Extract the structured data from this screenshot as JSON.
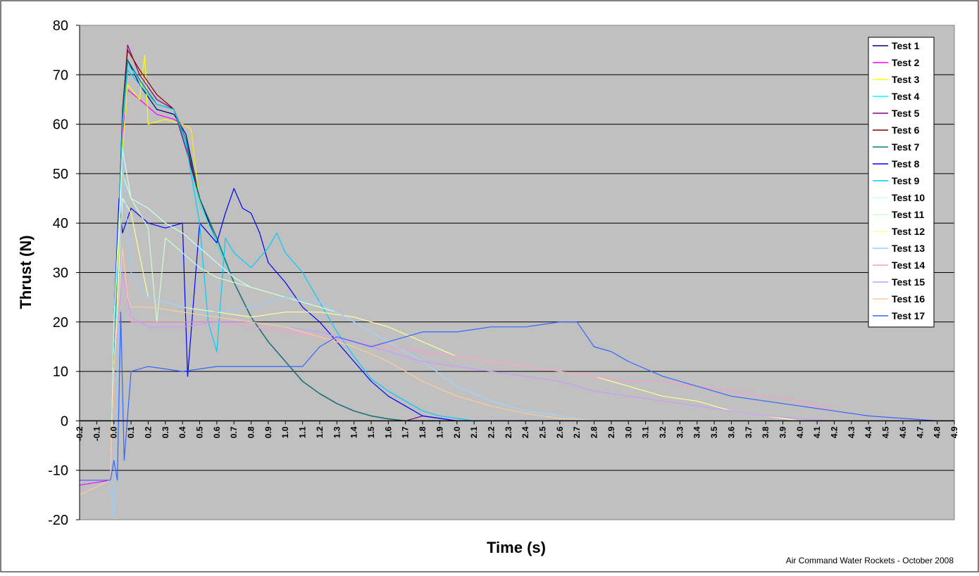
{
  "chart_data": {
    "type": "line",
    "title": "",
    "xlabel": "Time (s)",
    "ylabel": "Thrust (N)",
    "footer": "Air Command Water Rockets - October 2008",
    "xlim": [
      -0.2,
      4.9
    ],
    "ylim": [
      -20,
      80
    ],
    "y_ticks": [
      "80",
      "70",
      "60",
      "50",
      "40",
      "30",
      "20",
      "10",
      "0",
      "-10",
      "-20"
    ],
    "y_tick_values": [
      80,
      70,
      60,
      50,
      40,
      30,
      20,
      10,
      0,
      -10,
      -20
    ],
    "x_ticks": [
      "-0.2",
      "-0.1",
      "0.0",
      "0.1",
      "0.2",
      "0.3",
      "0.4",
      "0.5",
      "0.6",
      "0.7",
      "0.8",
      "0.9",
      "1.0",
      "1.1",
      "1.2",
      "1.3",
      "1.4",
      "1.5",
      "1.6",
      "1.7",
      "1.8",
      "1.9",
      "2.0",
      "2.1",
      "2.2",
      "2.3",
      "2.4",
      "2.5",
      "2.6",
      "2.7",
      "2.8",
      "2.9",
      "3.0",
      "3.1",
      "3.2",
      "3.3",
      "3.4",
      "3.5",
      "3.6",
      "3.7",
      "3.8",
      "3.9",
      "4.0",
      "4.1",
      "4.2",
      "4.3",
      "4.4",
      "4.5",
      "4.6",
      "4.7",
      "4.8",
      "4.9"
    ],
    "grid": true,
    "background": "#c0c0c0",
    "legend_position": "top-right",
    "series": [
      {
        "name": "Test 1",
        "color": "#000080",
        "x": [
          -0.2,
          -0.02,
          0.0,
          0.05,
          0.08,
          0.15,
          0.25,
          0.35,
          0.42,
          0.5,
          0.6,
          0.7,
          0.8,
          0.9,
          1.0,
          1.1,
          1.2,
          1.3,
          1.4,
          1.5,
          1.6,
          1.7,
          2.0,
          4.9
        ],
        "y": [
          -12,
          -12,
          10,
          60,
          73,
          68,
          63,
          62,
          58,
          45,
          36,
          28,
          21,
          16,
          12,
          8,
          5.5,
          3.5,
          2,
          1,
          0.4,
          0,
          0,
          0
        ]
      },
      {
        "name": "Test 2",
        "color": "#ff00ff",
        "x": [
          -0.2,
          -0.02,
          0.0,
          0.05,
          0.08,
          0.15,
          0.25,
          0.35,
          0.45,
          0.5,
          0.6,
          0.7,
          0.8,
          0.9,
          1.0,
          1.1,
          1.2,
          1.3,
          1.4,
          1.5,
          1.6,
          1.7,
          2.0,
          4.9
        ],
        "y": [
          -13,
          -12,
          10,
          58,
          67,
          65,
          62,
          61,
          59,
          44,
          36,
          28,
          21,
          16,
          12,
          8,
          5.5,
          3.5,
          2,
          1,
          0.4,
          0,
          0,
          0
        ]
      },
      {
        "name": "Test 3",
        "color": "#ffff00",
        "x": [
          -0.2,
          -0.02,
          0.0,
          0.05,
          0.08,
          0.15,
          0.18,
          0.2,
          0.3,
          0.4,
          0.45,
          0.5,
          0.6,
          0.7,
          0.8,
          0.9,
          1.0,
          1.1,
          1.2,
          1.3,
          1.4,
          1.5,
          1.6,
          1.7,
          2.0,
          4.9
        ],
        "y": [
          -12,
          -12,
          10,
          55,
          68,
          65,
          74,
          60,
          61,
          60,
          59,
          44,
          36,
          28,
          21,
          16,
          12,
          8,
          5.5,
          3.5,
          2,
          1,
          0.4,
          0,
          0,
          0
        ]
      },
      {
        "name": "Test 4",
        "color": "#00ffff",
        "x": [
          -0.2,
          -0.02,
          0.0,
          0.05,
          0.08,
          0.15,
          0.25,
          0.35,
          0.4,
          0.5,
          0.6,
          0.7,
          0.8,
          0.9,
          1.0,
          1.1,
          1.2,
          1.3,
          1.4,
          1.5,
          1.6,
          1.7,
          2.0,
          4.9
        ],
        "y": [
          -12,
          -12,
          10,
          62,
          72,
          69,
          64,
          63,
          58,
          44,
          36,
          28,
          21,
          16,
          12,
          8,
          5.5,
          3.5,
          2,
          1,
          0.4,
          0,
          0,
          0
        ]
      },
      {
        "name": "Test 5",
        "color": "#800080",
        "x": [
          -0.2,
          -0.02,
          0.0,
          0.05,
          0.08,
          0.15,
          0.25,
          0.35,
          0.42,
          0.5,
          0.6,
          0.7,
          0.8,
          0.9,
          1.0,
          1.1,
          1.2,
          1.3,
          1.4,
          1.5,
          1.6,
          1.7,
          1.8,
          1.9,
          2.0,
          4.9
        ],
        "y": [
          -12,
          -12,
          10,
          62,
          76,
          70,
          65,
          63,
          55,
          45,
          37,
          28,
          21,
          16,
          12,
          8,
          5.5,
          3.5,
          2,
          1,
          0.4,
          0,
          1,
          0.5,
          0,
          0
        ]
      },
      {
        "name": "Test 6",
        "color": "#800000",
        "x": [
          -0.2,
          -0.02,
          0.0,
          0.05,
          0.08,
          0.15,
          0.25,
          0.35,
          0.42,
          0.5,
          0.6,
          0.7,
          0.8,
          0.9,
          1.0,
          1.1,
          1.2,
          1.3,
          1.4,
          1.5,
          1.6,
          1.7,
          2.0,
          4.9
        ],
        "y": [
          -12,
          -12,
          10,
          63,
          75,
          71,
          66,
          63,
          56,
          45,
          37,
          28,
          21,
          16,
          12,
          8,
          5.5,
          3.5,
          2,
          1,
          0.4,
          0,
          0,
          0
        ]
      },
      {
        "name": "Test 7",
        "color": "#008080",
        "x": [
          -0.2,
          -0.02,
          0.0,
          0.05,
          0.08,
          0.15,
          0.25,
          0.35,
          0.42,
          0.5,
          0.6,
          0.7,
          0.8,
          0.9,
          1.0,
          1.1,
          1.2,
          1.3,
          1.4,
          1.5,
          1.6,
          1.7,
          2.0,
          4.9
        ],
        "y": [
          -12,
          -12,
          10,
          62,
          73,
          69,
          64,
          63,
          57,
          45,
          37,
          28,
          21,
          16,
          12,
          8,
          5.5,
          3.5,
          2,
          1,
          0.4,
          0,
          0,
          0
        ]
      },
      {
        "name": "Test 8",
        "color": "#0000ff",
        "x": [
          -0.2,
          -0.02,
          0.0,
          0.03,
          0.05,
          0.1,
          0.2,
          0.3,
          0.4,
          0.43,
          0.5,
          0.6,
          0.65,
          0.7,
          0.75,
          0.8,
          0.85,
          0.9,
          1.0,
          1.1,
          1.2,
          1.3,
          1.4,
          1.5,
          1.6,
          1.7,
          1.8,
          1.9,
          2.0,
          4.9
        ],
        "y": [
          -12,
          -12,
          20,
          45,
          38,
          43,
          40,
          39,
          40,
          9,
          40,
          36,
          42,
          47,
          43,
          42,
          38,
          32,
          28,
          23,
          20,
          16,
          12,
          8,
          5,
          3,
          1,
          0.5,
          0,
          0
        ]
      },
      {
        "name": "Test 9",
        "color": "#00ccff",
        "x": [
          -0.2,
          -0.02,
          0.0,
          0.05,
          0.08,
          0.15,
          0.25,
          0.35,
          0.42,
          0.5,
          0.55,
          0.6,
          0.65,
          0.7,
          0.8,
          0.9,
          0.95,
          1.0,
          1.1,
          1.2,
          1.3,
          1.4,
          1.5,
          1.6,
          1.7,
          1.8,
          1.9,
          2.0,
          2.1,
          4.9
        ],
        "y": [
          -12,
          -12,
          10,
          60,
          71,
          68,
          64,
          63,
          56,
          40,
          20,
          14,
          37,
          34,
          31,
          35,
          38,
          34,
          30,
          24,
          18,
          13,
          8.5,
          6,
          4,
          2,
          1,
          0.5,
          0,
          0
        ]
      },
      {
        "name": "Test 10",
        "color": "#ccffff",
        "x": [
          -0.2,
          -0.02,
          0.0,
          0.05,
          0.1,
          0.2,
          0.3,
          0.4,
          0.5,
          0.6,
          0.7,
          0.8,
          0.9,
          1.0,
          1.1,
          1.2,
          1.3,
          1.4,
          1.5,
          1.6,
          1.7,
          1.8,
          2.0,
          2.2,
          2.4,
          2.6,
          2.8,
          4.9
        ],
        "y": [
          -12,
          -12,
          20,
          55,
          45,
          43,
          40,
          38,
          35,
          32,
          29,
          27,
          26,
          25,
          24,
          23,
          22,
          20,
          18,
          16,
          14,
          12,
          7,
          4,
          2,
          1,
          0,
          0
        ]
      },
      {
        "name": "Test 11",
        "color": "#ccffcc",
        "x": [
          -0.2,
          -0.02,
          0.0,
          0.05,
          0.1,
          0.15,
          0.2,
          0.25,
          0.3,
          0.4,
          0.5,
          0.6,
          0.7,
          0.8,
          0.9,
          1.0,
          1.1,
          1.2,
          1.3,
          1.4,
          1.5,
          1.6,
          1.7,
          1.8,
          2.0,
          2.2,
          2.4,
          2.6,
          2.8,
          4.9
        ],
        "y": [
          -12,
          -12,
          20,
          50,
          45,
          42,
          39,
          20,
          37,
          34,
          31,
          29,
          28,
          27,
          26,
          25,
          24,
          23,
          22,
          20,
          18,
          16,
          14,
          12,
          7,
          4,
          2,
          1,
          0,
          0
        ]
      },
      {
        "name": "Test 12",
        "color": "#ffff99",
        "x": [
          -0.2,
          -0.02,
          0.0,
          0.05,
          0.1,
          0.2,
          0.4,
          0.6,
          0.8,
          1.0,
          1.2,
          1.4,
          1.6,
          1.8,
          2.0,
          2.2,
          2.4,
          2.6,
          2.8,
          3.0,
          3.2,
          3.4,
          3.6,
          3.8,
          4.0,
          4.9
        ],
        "y": [
          -12,
          -12,
          10,
          45,
          42,
          25,
          23,
          22,
          21,
          22,
          22,
          21,
          19,
          16,
          13,
          12,
          11,
          10,
          9,
          7,
          5,
          4,
          2,
          1,
          0,
          0
        ]
      },
      {
        "name": "Test 13",
        "color": "#99ccff",
        "x": [
          -0.2,
          -0.02,
          0.0,
          0.05,
          0.1,
          0.2,
          0.3,
          0.4,
          0.5,
          0.6,
          0.8,
          1.0,
          1.2,
          1.4,
          1.6,
          1.8,
          2.0,
          2.2,
          2.4,
          2.6,
          2.8,
          3.0,
          4.9
        ],
        "y": [
          -15,
          -12,
          -20,
          52,
          30,
          25,
          24,
          23,
          22,
          22,
          23,
          25,
          24,
          20,
          16,
          12,
          7,
          4,
          2,
          1,
          0,
          0,
          0
        ]
      },
      {
        "name": "Test 14",
        "color": "#ff99cc",
        "x": [
          -0.2,
          -0.02,
          0.0,
          0.05,
          0.1,
          0.2,
          0.4,
          0.6,
          0.8,
          1.0,
          1.2,
          1.4,
          1.6,
          1.8,
          2.0,
          2.2,
          2.4,
          2.6,
          2.8,
          3.0,
          3.2,
          3.4,
          3.6,
          3.8,
          4.0,
          4.2,
          4.4,
          4.6,
          4.8,
          4.9
        ],
        "y": [
          -12,
          -12,
          10,
          35,
          20,
          20,
          20,
          20,
          19,
          18,
          17,
          16,
          15,
          14,
          13,
          12,
          11,
          10,
          9,
          8,
          8,
          7,
          6,
          5,
          4,
          2,
          1,
          0.5,
          0,
          0
        ]
      },
      {
        "name": "Test 15",
        "color": "#cc99ff",
        "x": [
          -0.2,
          -0.02,
          0.0,
          0.05,
          0.1,
          0.2,
          0.4,
          0.6,
          0.8,
          1.0,
          1.2,
          1.4,
          1.6,
          1.8,
          2.0,
          2.2,
          2.4,
          2.6,
          2.8,
          3.0,
          3.2,
          3.4,
          3.6,
          3.8,
          4.0,
          4.2,
          4.4,
          4.9
        ],
        "y": [
          -12,
          -12,
          10,
          30,
          21,
          19,
          19,
          20,
          20,
          19,
          18,
          16,
          14,
          12,
          11,
          10,
          9,
          8,
          6,
          5,
          4,
          3,
          2,
          1,
          0.5,
          0,
          0,
          0
        ]
      },
      {
        "name": "Test 16",
        "color": "#ffcc99",
        "x": [
          -0.2,
          -0.02,
          0.0,
          0.05,
          0.08,
          0.1,
          0.2,
          0.4,
          0.6,
          0.8,
          1.0,
          1.2,
          1.4,
          1.6,
          1.8,
          2.0,
          2.2,
          2.4,
          2.6,
          2.8,
          4.9
        ],
        "y": [
          -15,
          -12,
          10,
          35,
          25,
          23,
          23,
          22,
          21,
          20,
          19,
          17,
          15,
          12,
          8,
          5,
          3,
          1.5,
          0.5,
          0,
          0
        ]
      },
      {
        "name": "Test 17",
        "color": "#3366ff",
        "x": [
          -0.2,
          -0.02,
          0.0,
          0.02,
          0.04,
          0.06,
          0.1,
          0.2,
          0.4,
          0.6,
          0.8,
          1.0,
          1.1,
          1.2,
          1.3,
          1.4,
          1.5,
          1.6,
          1.7,
          1.8,
          1.9,
          2.0,
          2.2,
          2.4,
          2.6,
          2.7,
          2.8,
          2.9,
          3.0,
          3.2,
          3.4,
          3.6,
          3.8,
          4.0,
          4.2,
          4.4,
          4.6,
          4.8,
          4.9
        ],
        "y": [
          -12,
          -12,
          -8,
          -12,
          22,
          -8,
          10,
          11,
          10,
          11,
          11,
          11,
          11,
          15,
          17,
          16,
          15,
          16,
          17,
          18,
          18,
          18,
          19,
          19,
          20,
          20,
          15,
          14,
          12,
          9,
          7,
          5,
          4,
          3,
          2,
          1,
          0.5,
          0,
          0
        ]
      }
    ]
  }
}
